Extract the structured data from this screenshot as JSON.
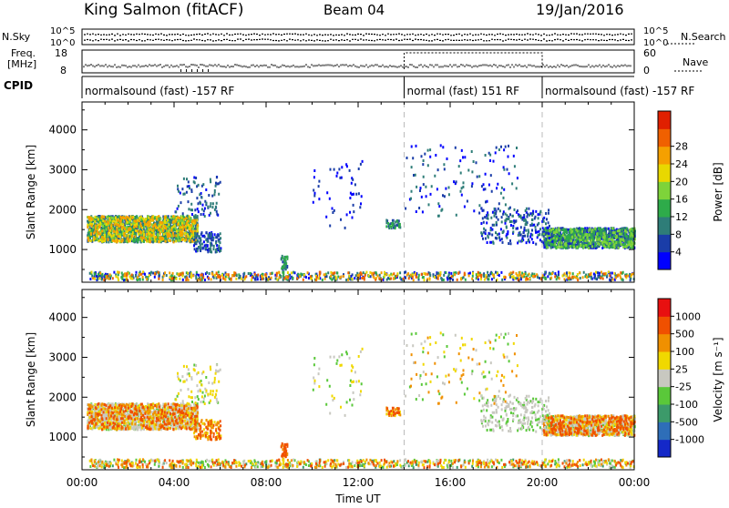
{
  "header": {
    "station": "King Salmon (fitACF)",
    "beam": "Beam 04",
    "date": "19/Jan/2016"
  },
  "status": {
    "nsky_label": "N.Sky",
    "nsearch_label": "N.Search",
    "freq_label_1": "Freq.",
    "freq_label_2": "[MHz]",
    "nave_label": "Nave",
    "cpid_label": "CPID",
    "sky_ticks": [
      "10^5",
      "10^0"
    ],
    "sky_ticks_right": [
      "10^5",
      "10^0"
    ],
    "freq_ticks": [
      "18",
      "8"
    ],
    "nave_ticks": [
      "60",
      "0"
    ],
    "cpid_segments": [
      {
        "label": "normalsound (fast) -157 RF",
        "start": 0,
        "end": 14
      },
      {
        "label": "normal (fast) 151 RF",
        "start": 14,
        "end": 20
      },
      {
        "label": "normalsound (fast) -157 RF",
        "start": 20,
        "end": 24
      }
    ]
  },
  "chart_data": [
    {
      "type": "heatmap",
      "name": "power",
      "ylabel": "Slant Range [km]",
      "xlabel": "Time UT",
      "xlim": [
        0,
        24
      ],
      "ylim": [
        180,
        4700
      ],
      "yticks": [
        "1000",
        "2000",
        "3000",
        "4000"
      ],
      "colorbar": {
        "label": "Power [dB]",
        "ticks": [
          "4",
          "8",
          "12",
          "16",
          "20",
          "24",
          "28"
        ],
        "colors": [
          "#0000ff",
          "#1a3da8",
          "#2e7d78",
          "#2eab4a",
          "#7ed33a",
          "#e8d800",
          "#f5a000",
          "#f06000",
          "#e02000"
        ]
      },
      "dividers": [
        14,
        20
      ]
    },
    {
      "type": "heatmap",
      "name": "velocity",
      "ylabel": "Slant Range [km]",
      "xlabel": "Time UT",
      "xlim": [
        0,
        24
      ],
      "ylim": [
        180,
        4700
      ],
      "yticks": [
        "1000",
        "2000",
        "3000",
        "4000"
      ],
      "colorbar": {
        "label": "Velocity [m s⁻¹]",
        "ticks": [
          "1000",
          "500",
          "100",
          "25",
          "-25",
          "-100",
          "-500",
          "-1000"
        ],
        "colors": [
          "#1428c8",
          "#2e6eb8",
          "#3c9a6a",
          "#5ac83a",
          "#c8c8c0",
          "#f0d800",
          "#f09000",
          "#f05000",
          "#e81010"
        ]
      },
      "dividers": [
        14,
        20
      ]
    }
  ],
  "xaxis": {
    "ticks": [
      "00:00",
      "04:00",
      "08:00",
      "12:00",
      "16:00",
      "20:00",
      "00:00"
    ],
    "label": "Time UT"
  }
}
